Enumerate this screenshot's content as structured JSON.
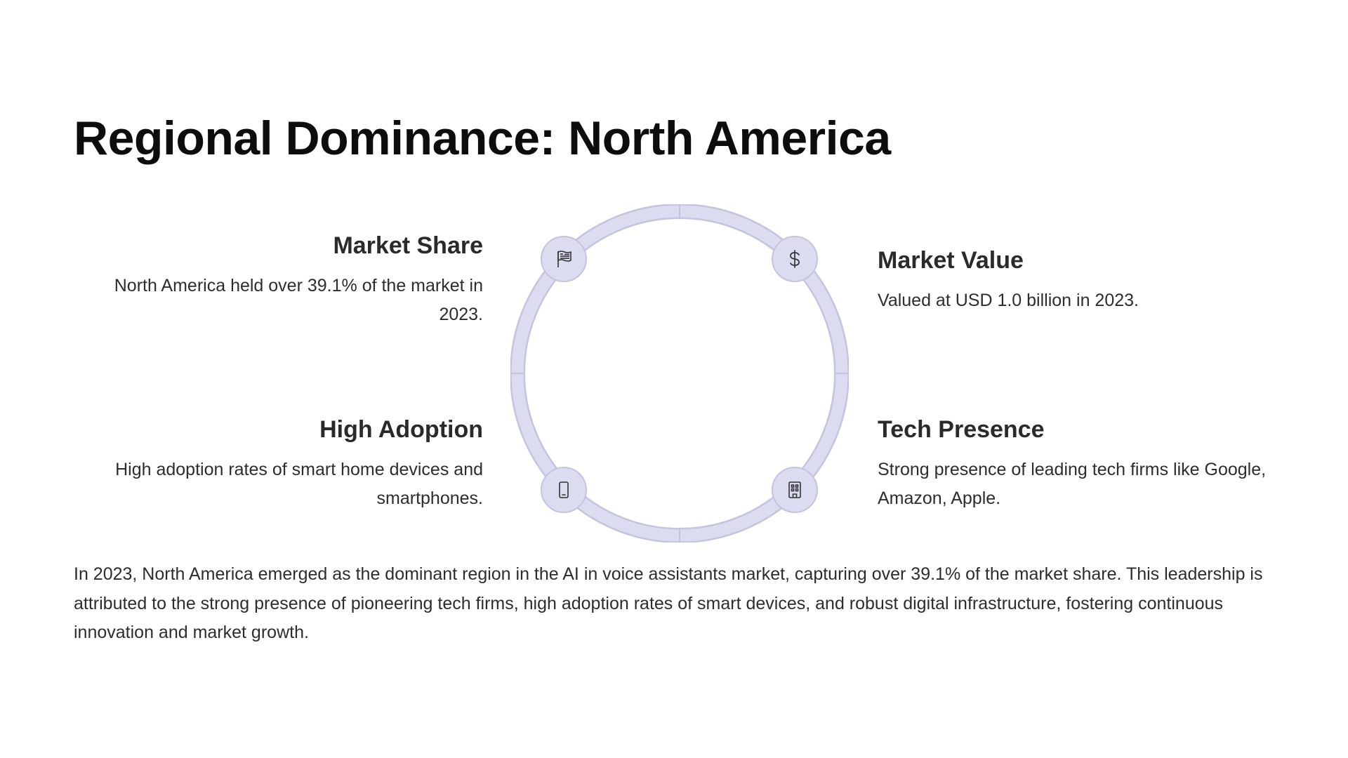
{
  "slide": {
    "title": "Regional Dominance: North America",
    "points": {
      "market_share": {
        "heading": "Market Share",
        "text": "North America held over 39.1% of the market in 2023.",
        "icon": "flag-icon"
      },
      "market_value": {
        "heading": "Market Value",
        "text": "Valued at USD 1.0 billion in 2023.",
        "icon": "dollar-icon"
      },
      "high_adoption": {
        "heading": "High Adoption",
        "text": "High adoption rates of smart home devices and smartphones.",
        "icon": "smartphone-icon"
      },
      "tech_presence": {
        "heading": "Tech Presence",
        "text": "Strong presence of leading tech firms like Google, Amazon, Apple.",
        "icon": "building-icon"
      }
    },
    "summary": "In 2023, North America emerged as the dominant region in the AI in voice assistants market, capturing over 39.1% of the market share. This leadership is attributed to the strong presence of pioneering tech firms, high adoption rates of smart devices, and robust digital infrastructure, fostering continuous innovation and market growth."
  },
  "colors": {
    "ring_fill": "#dcdcf1",
    "ring_border": "#c4c4df",
    "title": "#0d0d0d",
    "text": "#2d2d2d"
  }
}
